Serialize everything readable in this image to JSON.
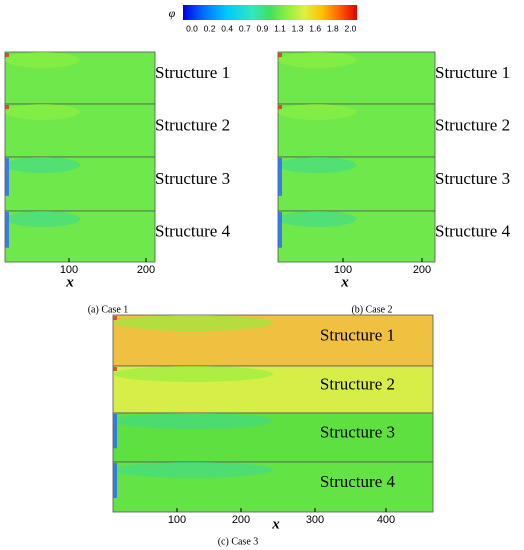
{
  "colorbar": {
    "symbol": "φ",
    "labels": [
      "0.0",
      "0.2",
      "0.4",
      "0.7",
      "0.9",
      "1.1",
      "1.3",
      "1.6",
      "1.8",
      "2.0"
    ]
  },
  "panels": [
    {
      "structures": [
        "Structure 1",
        "Structure 2",
        "Structure 3",
        "Structure 4"
      ],
      "x_ticks": [
        "100",
        "200"
      ],
      "x_label": "x",
      "caption": "(a) Case 1"
    },
    {
      "structures": [
        "Structure 1",
        "Structure 2",
        "Structure 3",
        "Structure 4"
      ],
      "x_ticks": [
        "100",
        "200"
      ],
      "x_label": "x",
      "caption": "(b) Case 2"
    },
    {
      "structures": [
        "Structure 1",
        "Structure 2",
        "Structure 3",
        "Structure 4"
      ],
      "x_ticks": [
        "100",
        "200",
        "300",
        "400"
      ],
      "x_label": "x",
      "caption": "(c) Case 3"
    }
  ]
}
